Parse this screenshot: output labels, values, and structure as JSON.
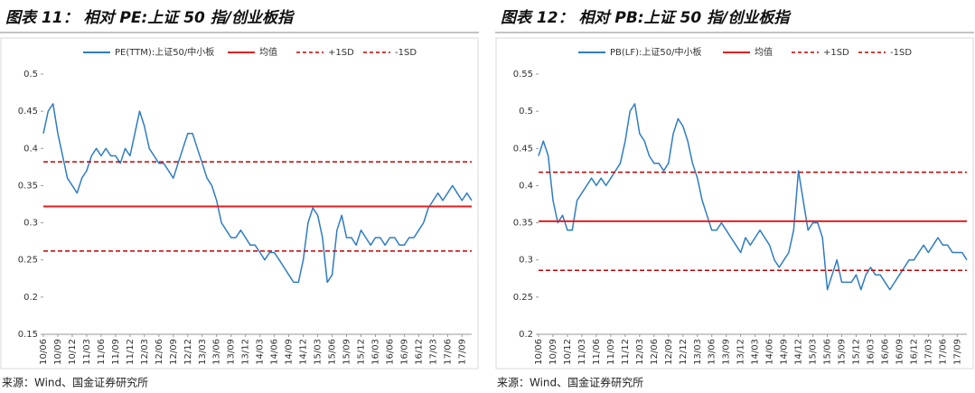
{
  "chart_data": [
    {
      "type": "line",
      "title": "图表 11：  相对 PE:上证 50 指/创业板指",
      "source": "来源：Wind、国金证券研究所",
      "categories": [
        "10/06",
        null,
        null,
        "10/09",
        null,
        null,
        "10/12",
        null,
        null,
        "11/03",
        null,
        null,
        "11/06",
        null,
        null,
        "11/09",
        null,
        null,
        "11/12",
        null,
        null,
        "12/03",
        null,
        null,
        "12/06",
        null,
        null,
        "12/09",
        null,
        null,
        "12/12",
        null,
        null,
        "13/03",
        null,
        null,
        "13/06",
        null,
        null,
        "13/09",
        null,
        null,
        "13/12",
        null,
        null,
        "14/03",
        null,
        null,
        "14/06",
        null,
        null,
        "14/09",
        null,
        null,
        "14/12",
        null,
        null,
        "15/03",
        null,
        null,
        "15/06",
        null,
        null,
        "15/09",
        null,
        null,
        "15/12",
        null,
        null,
        "16/03",
        null,
        null,
        "16/06",
        null,
        null,
        "16/09",
        null,
        null,
        "16/12",
        null,
        null,
        "17/03",
        null,
        null,
        "17/06",
        null,
        null,
        "17/09",
        null,
        null
      ],
      "series": [
        {
          "name": "PE(TTM):上证50/中小板",
          "color": "#2e7cc2",
          "values": [
            0.42,
            0.45,
            0.46,
            0.42,
            0.39,
            0.36,
            0.35,
            0.34,
            0.36,
            0.37,
            0.39,
            0.4,
            0.39,
            0.4,
            0.39,
            0.39,
            0.38,
            0.4,
            0.39,
            0.42,
            0.45,
            0.43,
            0.4,
            0.39,
            0.38,
            0.38,
            0.37,
            0.36,
            0.38,
            0.4,
            0.42,
            0.42,
            0.4,
            0.38,
            0.36,
            0.35,
            0.33,
            0.3,
            0.29,
            0.28,
            0.28,
            0.29,
            0.28,
            0.27,
            0.27,
            0.26,
            0.25,
            0.26,
            0.26,
            0.25,
            0.24,
            0.23,
            0.22,
            0.22,
            0.25,
            0.3,
            0.32,
            0.31,
            0.28,
            0.22,
            0.23,
            0.29,
            0.31,
            0.28,
            0.28,
            0.27,
            0.29,
            0.28,
            0.27,
            0.28,
            0.28,
            0.27,
            0.28,
            0.28,
            0.27,
            0.27,
            0.28,
            0.28,
            0.29,
            0.3,
            0.32,
            0.33,
            0.34,
            0.33,
            0.34,
            0.35,
            0.34,
            0.33,
            0.34,
            0.33
          ]
        }
      ],
      "reference_lines": [
        {
          "name": "均值",
          "color": "#e41e1e",
          "value": 0.322,
          "dashed": false
        },
        {
          "name": "+1SD",
          "color": "#c00000",
          "value": 0.382,
          "dashed": true
        },
        {
          "name": "-1SD",
          "color": "#c00000",
          "value": 0.262,
          "dashed": true
        }
      ],
      "ylim": [
        0.15,
        0.5
      ],
      "yticks": [
        0.15,
        0.2,
        0.25,
        0.3,
        0.35,
        0.4,
        0.45,
        0.5
      ],
      "legend": "top",
      "grid": false
    },
    {
      "type": "line",
      "title": "图表 12：  相对 PB:上证 50 指/创业板指",
      "source": "来源：Wind、国金证券研究所",
      "categories": [
        "10/06",
        null,
        null,
        "10/09",
        null,
        null,
        "10/12",
        null,
        null,
        "11/03",
        null,
        null,
        "11/06",
        null,
        null,
        "11/09",
        null,
        null,
        "11/12",
        null,
        null,
        "12/03",
        null,
        null,
        "12/06",
        null,
        null,
        "12/09",
        null,
        null,
        "12/12",
        null,
        null,
        "13/03",
        null,
        null,
        "13/06",
        null,
        null,
        "13/09",
        null,
        null,
        "13/12",
        null,
        null,
        "14/03",
        null,
        null,
        "14/06",
        null,
        null,
        "14/09",
        null,
        null,
        "14/12",
        null,
        null,
        "15/03",
        null,
        null,
        "15/06",
        null,
        null,
        "15/09",
        null,
        null,
        "15/12",
        null,
        null,
        "16/03",
        null,
        null,
        "16/06",
        null,
        null,
        "16/09",
        null,
        null,
        "16/12",
        null,
        null,
        "17/03",
        null,
        null,
        "17/06",
        null,
        null,
        "17/09",
        null,
        null
      ],
      "series": [
        {
          "name": "PB(LF):上证50/中小板",
          "color": "#2e7cc2",
          "values": [
            0.44,
            0.46,
            0.44,
            0.38,
            0.35,
            0.36,
            0.34,
            0.34,
            0.38,
            0.39,
            0.4,
            0.41,
            0.4,
            0.41,
            0.4,
            0.41,
            0.42,
            0.43,
            0.46,
            0.5,
            0.51,
            0.47,
            0.46,
            0.44,
            0.43,
            0.43,
            0.42,
            0.43,
            0.47,
            0.49,
            0.48,
            0.46,
            0.43,
            0.41,
            0.38,
            0.36,
            0.34,
            0.34,
            0.35,
            0.34,
            0.33,
            0.32,
            0.31,
            0.33,
            0.32,
            0.33,
            0.34,
            0.33,
            0.32,
            0.3,
            0.29,
            0.3,
            0.31,
            0.34,
            0.42,
            0.38,
            0.34,
            0.35,
            0.35,
            0.33,
            0.26,
            0.28,
            0.3,
            0.27,
            0.27,
            0.27,
            0.28,
            0.26,
            0.28,
            0.29,
            0.28,
            0.28,
            0.27,
            0.26,
            0.27,
            0.28,
            0.29,
            0.3,
            0.3,
            0.31,
            0.32,
            0.31,
            0.32,
            0.33,
            0.32,
            0.32,
            0.31,
            0.31,
            0.31,
            0.3
          ]
        }
      ],
      "reference_lines": [
        {
          "name": "均值",
          "color": "#e41e1e",
          "value": 0.352,
          "dashed": false
        },
        {
          "name": "+1SD",
          "color": "#c00000",
          "value": 0.418,
          "dashed": true
        },
        {
          "name": "-1SD",
          "color": "#c00000",
          "value": 0.286,
          "dashed": true
        }
      ],
      "ylim": [
        0.2,
        0.55
      ],
      "yticks": [
        0.2,
        0.25,
        0.3,
        0.35,
        0.4,
        0.45,
        0.5,
        0.55
      ],
      "legend": "top",
      "grid": false
    }
  ]
}
